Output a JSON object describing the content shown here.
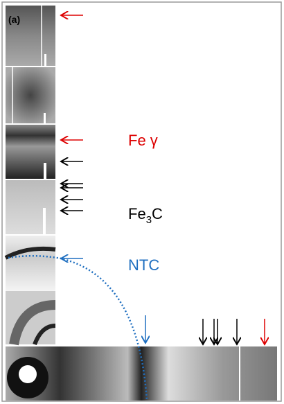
{
  "panel_label": "(a)",
  "labels": {
    "fe_gamma": "Fe γ",
    "fe3c": {
      "main": "Fe",
      "sub": "3",
      "tail": "C"
    },
    "ntc": "NTC"
  }
}
